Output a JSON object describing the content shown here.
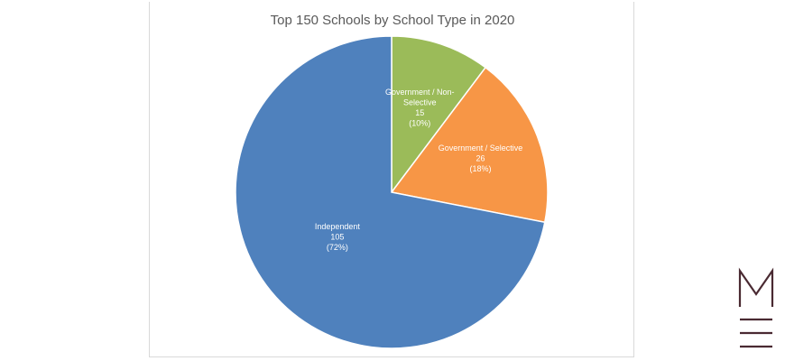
{
  "chart_data": {
    "type": "pie",
    "title": "Top 150 Schools by School Type in 2020",
    "start_angle_deg": 0,
    "direction": "clockwise",
    "slices": [
      {
        "label": "Government / Non-Selective",
        "label_lines": [
          "Government / Non-",
          "Selective"
        ],
        "value": 15,
        "value_label": "15",
        "percent_label": "(10%)",
        "color": "#9BBB59"
      },
      {
        "label": "Government / Selective",
        "label_lines": [
          "Government / Selective"
        ],
        "value": 26,
        "value_label": "26",
        "percent_label": "(18%)",
        "color": "#F79646"
      },
      {
        "label": "Independent",
        "label_lines": [
          "Independent"
        ],
        "value": 105,
        "value_label": "105",
        "percent_label": "(72%)",
        "color": "#4F81BD"
      }
    ]
  },
  "logo": {
    "letter": "M",
    "color": "#4A2A32"
  }
}
